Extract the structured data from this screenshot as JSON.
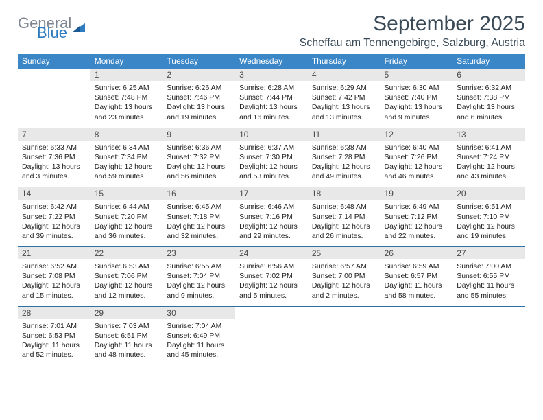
{
  "brand": {
    "word1": "General",
    "word2": "Blue"
  },
  "title": "September 2025",
  "location": "Scheffau am Tennengebirge, Salzburg, Austria",
  "colors": {
    "header_bg": "#3b86c6",
    "header_text": "#ffffff",
    "daynum_bg": "#e8e8e8",
    "week_divider": "#2e6fa5",
    "title_color": "#3a4a57",
    "logo_gray": "#7d8690",
    "logo_blue": "#2e7cc0",
    "body_text": "#222222"
  },
  "dow": [
    "Sunday",
    "Monday",
    "Tuesday",
    "Wednesday",
    "Thursday",
    "Friday",
    "Saturday"
  ],
  "weeks": [
    {
      "nums": [
        "",
        "1",
        "2",
        "3",
        "4",
        "5",
        "6"
      ],
      "cells": [
        {
          "sunrise": "",
          "sunset": "",
          "daylight": ""
        },
        {
          "sunrise": "Sunrise: 6:25 AM",
          "sunset": "Sunset: 7:48 PM",
          "daylight": "Daylight: 13 hours and 23 minutes."
        },
        {
          "sunrise": "Sunrise: 6:26 AM",
          "sunset": "Sunset: 7:46 PM",
          "daylight": "Daylight: 13 hours and 19 minutes."
        },
        {
          "sunrise": "Sunrise: 6:28 AM",
          "sunset": "Sunset: 7:44 PM",
          "daylight": "Daylight: 13 hours and 16 minutes."
        },
        {
          "sunrise": "Sunrise: 6:29 AM",
          "sunset": "Sunset: 7:42 PM",
          "daylight": "Daylight: 13 hours and 13 minutes."
        },
        {
          "sunrise": "Sunrise: 6:30 AM",
          "sunset": "Sunset: 7:40 PM",
          "daylight": "Daylight: 13 hours and 9 minutes."
        },
        {
          "sunrise": "Sunrise: 6:32 AM",
          "sunset": "Sunset: 7:38 PM",
          "daylight": "Daylight: 13 hours and 6 minutes."
        }
      ]
    },
    {
      "nums": [
        "7",
        "8",
        "9",
        "10",
        "11",
        "12",
        "13"
      ],
      "cells": [
        {
          "sunrise": "Sunrise: 6:33 AM",
          "sunset": "Sunset: 7:36 PM",
          "daylight": "Daylight: 13 hours and 3 minutes."
        },
        {
          "sunrise": "Sunrise: 6:34 AM",
          "sunset": "Sunset: 7:34 PM",
          "daylight": "Daylight: 12 hours and 59 minutes."
        },
        {
          "sunrise": "Sunrise: 6:36 AM",
          "sunset": "Sunset: 7:32 PM",
          "daylight": "Daylight: 12 hours and 56 minutes."
        },
        {
          "sunrise": "Sunrise: 6:37 AM",
          "sunset": "Sunset: 7:30 PM",
          "daylight": "Daylight: 12 hours and 53 minutes."
        },
        {
          "sunrise": "Sunrise: 6:38 AM",
          "sunset": "Sunset: 7:28 PM",
          "daylight": "Daylight: 12 hours and 49 minutes."
        },
        {
          "sunrise": "Sunrise: 6:40 AM",
          "sunset": "Sunset: 7:26 PM",
          "daylight": "Daylight: 12 hours and 46 minutes."
        },
        {
          "sunrise": "Sunrise: 6:41 AM",
          "sunset": "Sunset: 7:24 PM",
          "daylight": "Daylight: 12 hours and 43 minutes."
        }
      ]
    },
    {
      "nums": [
        "14",
        "15",
        "16",
        "17",
        "18",
        "19",
        "20"
      ],
      "cells": [
        {
          "sunrise": "Sunrise: 6:42 AM",
          "sunset": "Sunset: 7:22 PM",
          "daylight": "Daylight: 12 hours and 39 minutes."
        },
        {
          "sunrise": "Sunrise: 6:44 AM",
          "sunset": "Sunset: 7:20 PM",
          "daylight": "Daylight: 12 hours and 36 minutes."
        },
        {
          "sunrise": "Sunrise: 6:45 AM",
          "sunset": "Sunset: 7:18 PM",
          "daylight": "Daylight: 12 hours and 32 minutes."
        },
        {
          "sunrise": "Sunrise: 6:46 AM",
          "sunset": "Sunset: 7:16 PM",
          "daylight": "Daylight: 12 hours and 29 minutes."
        },
        {
          "sunrise": "Sunrise: 6:48 AM",
          "sunset": "Sunset: 7:14 PM",
          "daylight": "Daylight: 12 hours and 26 minutes."
        },
        {
          "sunrise": "Sunrise: 6:49 AM",
          "sunset": "Sunset: 7:12 PM",
          "daylight": "Daylight: 12 hours and 22 minutes."
        },
        {
          "sunrise": "Sunrise: 6:51 AM",
          "sunset": "Sunset: 7:10 PM",
          "daylight": "Daylight: 12 hours and 19 minutes."
        }
      ]
    },
    {
      "nums": [
        "21",
        "22",
        "23",
        "24",
        "25",
        "26",
        "27"
      ],
      "cells": [
        {
          "sunrise": "Sunrise: 6:52 AM",
          "sunset": "Sunset: 7:08 PM",
          "daylight": "Daylight: 12 hours and 15 minutes."
        },
        {
          "sunrise": "Sunrise: 6:53 AM",
          "sunset": "Sunset: 7:06 PM",
          "daylight": "Daylight: 12 hours and 12 minutes."
        },
        {
          "sunrise": "Sunrise: 6:55 AM",
          "sunset": "Sunset: 7:04 PM",
          "daylight": "Daylight: 12 hours and 9 minutes."
        },
        {
          "sunrise": "Sunrise: 6:56 AM",
          "sunset": "Sunset: 7:02 PM",
          "daylight": "Daylight: 12 hours and 5 minutes."
        },
        {
          "sunrise": "Sunrise: 6:57 AM",
          "sunset": "Sunset: 7:00 PM",
          "daylight": "Daylight: 12 hours and 2 minutes."
        },
        {
          "sunrise": "Sunrise: 6:59 AM",
          "sunset": "Sunset: 6:57 PM",
          "daylight": "Daylight: 11 hours and 58 minutes."
        },
        {
          "sunrise": "Sunrise: 7:00 AM",
          "sunset": "Sunset: 6:55 PM",
          "daylight": "Daylight: 11 hours and 55 minutes."
        }
      ]
    },
    {
      "nums": [
        "28",
        "29",
        "30",
        "",
        "",
        "",
        ""
      ],
      "cells": [
        {
          "sunrise": "Sunrise: 7:01 AM",
          "sunset": "Sunset: 6:53 PM",
          "daylight": "Daylight: 11 hours and 52 minutes."
        },
        {
          "sunrise": "Sunrise: 7:03 AM",
          "sunset": "Sunset: 6:51 PM",
          "daylight": "Daylight: 11 hours and 48 minutes."
        },
        {
          "sunrise": "Sunrise: 7:04 AM",
          "sunset": "Sunset: 6:49 PM",
          "daylight": "Daylight: 11 hours and 45 minutes."
        },
        {
          "sunrise": "",
          "sunset": "",
          "daylight": ""
        },
        {
          "sunrise": "",
          "sunset": "",
          "daylight": ""
        },
        {
          "sunrise": "",
          "sunset": "",
          "daylight": ""
        },
        {
          "sunrise": "",
          "sunset": "",
          "daylight": ""
        }
      ]
    }
  ]
}
